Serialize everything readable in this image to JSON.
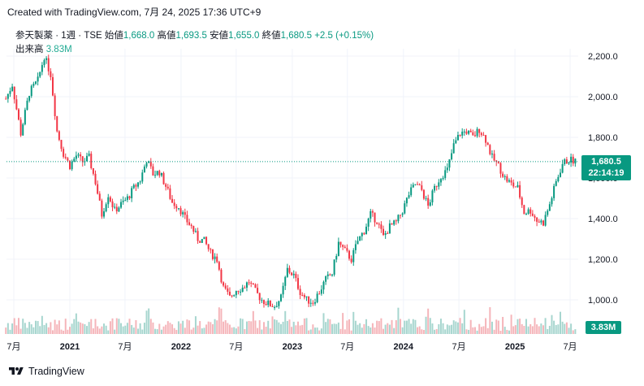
{
  "header": {
    "note": "Created with TradingView.com, 7月 24, 2025 17:36 UTC+9"
  },
  "legend": {
    "symbol": "参天製薬 · 1週 · TSE",
    "open_label": "始値",
    "open": "1,668.0",
    "high_label": "高値",
    "high": "1,693.5",
    "low_label": "安値",
    "low": "1,655.0",
    "close_label": "終値",
    "close": "1,680.5",
    "change": "+2.5 (+0.15%)",
    "volume_label": "出来高",
    "volume": "3.83M"
  },
  "badges": {
    "price": "1,680.5",
    "countdown": "22:14:19",
    "volume": "3.83M"
  },
  "footer": {
    "brand": "TradingView"
  },
  "colors": {
    "up": "#089981",
    "down": "#f23645",
    "text": "#131722"
  },
  "chart_data": {
    "type": "candlestick",
    "title": "参天製薬 · 1週 · TSE",
    "y_ticks": [
      "2,200.0",
      "2,000.0",
      "1,800.0",
      "1,600.0",
      "1,400.0",
      "1,200.0",
      "1,000.0"
    ],
    "y_tick_values": [
      2200,
      2000,
      1800,
      1600,
      1400,
      1200,
      1000
    ],
    "ylim": [
      920,
      2280
    ],
    "x_ticks": [
      "7月",
      "2021",
      "7月",
      "2022",
      "7月",
      "2023",
      "7月",
      "2024",
      "7月",
      "2025",
      "7月"
    ],
    "x_tick_years": [
      false,
      true,
      false,
      true,
      false,
      true,
      false,
      true,
      false,
      true,
      false
    ],
    "x_tick_dates": [
      "2020-07-01",
      "2021-01-01",
      "2021-07-01",
      "2022-01-01",
      "2022-07-01",
      "2023-01-01",
      "2023-07-01",
      "2024-01-01",
      "2024-07-01",
      "2025-01-01",
      "2025-07-01"
    ],
    "last_price": 1680.5,
    "price_path": [
      [
        "2020-06-05",
        1990
      ],
      [
        "2020-06-26",
        2060
      ],
      [
        "2020-07-24",
        1820
      ],
      [
        "2020-08-21",
        2020
      ],
      [
        "2020-09-18",
        2080
      ],
      [
        "2020-10-09",
        2200
      ],
      [
        "2020-10-30",
        2110
      ],
      [
        "2020-11-20",
        1830
      ],
      [
        "2020-12-11",
        1720
      ],
      [
        "2021-01-01",
        1660
      ],
      [
        "2021-01-22",
        1710
      ],
      [
        "2021-02-12",
        1680
      ],
      [
        "2021-03-05",
        1700
      ],
      [
        "2021-03-26",
        1580
      ],
      [
        "2021-04-16",
        1420
      ],
      [
        "2021-05-07",
        1520
      ],
      [
        "2021-05-28",
        1440
      ],
      [
        "2021-06-18",
        1470
      ],
      [
        "2021-07-09",
        1500
      ],
      [
        "2021-07-30",
        1550
      ],
      [
        "2021-08-20",
        1590
      ],
      [
        "2021-09-10",
        1690
      ],
      [
        "2021-10-01",
        1620
      ],
      [
        "2021-10-22",
        1630
      ],
      [
        "2021-11-12",
        1560
      ],
      [
        "2021-12-03",
        1480
      ],
      [
        "2021-12-24",
        1460
      ],
      [
        "2022-01-14",
        1400
      ],
      [
        "2022-02-04",
        1360
      ],
      [
        "2022-02-25",
        1300
      ],
      [
        "2022-03-18",
        1290
      ],
      [
        "2022-04-08",
        1230
      ],
      [
        "2022-04-29",
        1200
      ],
      [
        "2022-05-20",
        1060
      ],
      [
        "2022-06-10",
        1010
      ],
      [
        "2022-07-01",
        1050
      ],
      [
        "2022-07-22",
        1060
      ],
      [
        "2022-08-12",
        1090
      ],
      [
        "2022-09-02",
        1040
      ],
      [
        "2022-09-23",
        1000
      ],
      [
        "2022-10-14",
        980
      ],
      [
        "2022-11-04",
        970
      ],
      [
        "2022-11-25",
        1010
      ],
      [
        "2022-12-16",
        1150
      ],
      [
        "2023-01-06",
        1120
      ],
      [
        "2023-01-27",
        1040
      ],
      [
        "2023-02-17",
        1000
      ],
      [
        "2023-03-10",
        990
      ],
      [
        "2023-03-31",
        1040
      ],
      [
        "2023-04-21",
        1100
      ],
      [
        "2023-05-12",
        1130
      ],
      [
        "2023-06-02",
        1280
      ],
      [
        "2023-06-23",
        1240
      ],
      [
        "2023-07-14",
        1200
      ],
      [
        "2023-08-04",
        1290
      ],
      [
        "2023-08-25",
        1340
      ],
      [
        "2023-09-15",
        1420
      ],
      [
        "2023-10-06",
        1390
      ],
      [
        "2023-10-27",
        1310
      ],
      [
        "2023-11-17",
        1360
      ],
      [
        "2023-12-08",
        1380
      ],
      [
        "2023-12-29",
        1440
      ],
      [
        "2024-01-19",
        1520
      ],
      [
        "2024-02-09",
        1570
      ],
      [
        "2024-03-01",
        1540
      ],
      [
        "2024-03-22",
        1460
      ],
      [
        "2024-04-12",
        1550
      ],
      [
        "2024-05-03",
        1610
      ],
      [
        "2024-05-24",
        1640
      ],
      [
        "2024-06-14",
        1760
      ],
      [
        "2024-07-05",
        1820
      ],
      [
        "2024-07-26",
        1830
      ],
      [
        "2024-08-16",
        1800
      ],
      [
        "2024-09-06",
        1840
      ],
      [
        "2024-09-27",
        1790
      ],
      [
        "2024-10-18",
        1700
      ],
      [
        "2024-11-08",
        1660
      ],
      [
        "2024-11-29",
        1600
      ],
      [
        "2024-12-20",
        1570
      ],
      [
        "2025-01-10",
        1550
      ],
      [
        "2025-01-31",
        1430
      ],
      [
        "2025-02-21",
        1440
      ],
      [
        "2025-03-14",
        1390
      ],
      [
        "2025-04-04",
        1380
      ],
      [
        "2025-04-25",
        1470
      ],
      [
        "2025-05-16",
        1580
      ],
      [
        "2025-06-06",
        1670
      ],
      [
        "2025-06-27",
        1690
      ],
      [
        "2025-07-24",
        1680.5
      ]
    ]
  }
}
